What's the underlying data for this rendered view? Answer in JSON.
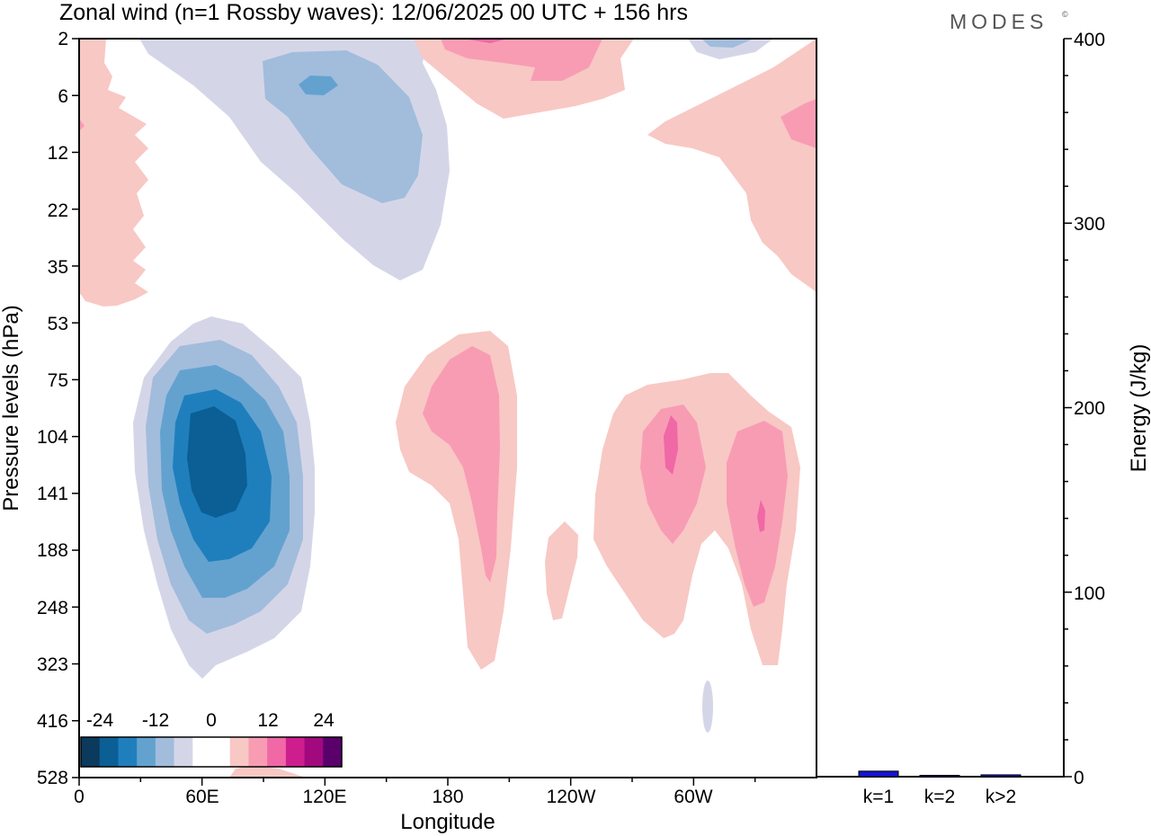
{
  "header": {
    "title": "Zonal wind (n=1 Rossby waves):  12/06/2025  00 UTC  + 156 hrs",
    "brand": "MODES",
    "brand_mark": "©"
  },
  "colors": {
    "neg": [
      "#0b3a5c",
      "#0b5f94",
      "#1f7fbd",
      "#63a2cf",
      "#a2bcdc",
      "#d4d6e8"
    ],
    "zero": "#ffffff",
    "pos": [
      "#f8c8c4",
      "#f89cb4",
      "#f068a6",
      "#ce1e8e",
      "#a3097e",
      "#5a006b"
    ],
    "bar_fill": "#1414d2"
  },
  "chart_data": [
    {
      "type": "heatmap",
      "title": "Zonal wind (n=1 Rossby waves):  12/06/2025  00 UTC  + 156 hrs",
      "xlabel": "Longitude",
      "ylabel": "Pressure levels (hPa)",
      "x_ticks": [
        "0",
        "60E",
        "120E",
        "180",
        "120W",
        "60W"
      ],
      "x_tick_values": [
        0,
        60,
        120,
        180,
        240,
        300
      ],
      "xlim": [
        0,
        360
      ],
      "y_ticks": [
        "2",
        "6",
        "12",
        "22",
        "35",
        "53",
        "75",
        "104",
        "141",
        "188",
        "248",
        "323",
        "416",
        "528"
      ],
      "colorbar": {
        "tick_labels": [
          "-24",
          "-12",
          "0",
          "12",
          "24"
        ],
        "levels": [
          -28,
          -24,
          -20,
          -16,
          -12,
          -8,
          -4,
          4,
          8,
          12,
          16,
          20,
          24,
          28
        ]
      },
      "features": [
        {
          "sign": "neg",
          "lon": 64,
          "level": "104-141",
          "peak": -24
        },
        {
          "sign": "neg",
          "lon": 115,
          "level": "6",
          "peak": -20
        },
        {
          "sign": "pos",
          "lon": 190,
          "level": "104",
          "peak": 12
        },
        {
          "sign": "pos",
          "lon": 288,
          "level": "104",
          "peak": 16
        },
        {
          "sign": "pos",
          "lon": 330,
          "level": "141",
          "peak": 16
        },
        {
          "sign": "pos",
          "lon": 195,
          "level": "2-6",
          "peak": 12
        },
        {
          "sign": "pos",
          "lon": 5,
          "level": "2-35",
          "peak": 8
        }
      ]
    },
    {
      "type": "bar",
      "categories": [
        "k=1",
        "k=2",
        "k>2"
      ],
      "values": [
        3,
        0.5,
        1
      ],
      "ylabel": "Energy (J/kg)",
      "ylim": [
        0,
        400
      ],
      "y_ticks": [
        "0",
        "100",
        "200",
        "300",
        "400"
      ],
      "y_tick_values": [
        0,
        100,
        200,
        300,
        400
      ]
    }
  ]
}
